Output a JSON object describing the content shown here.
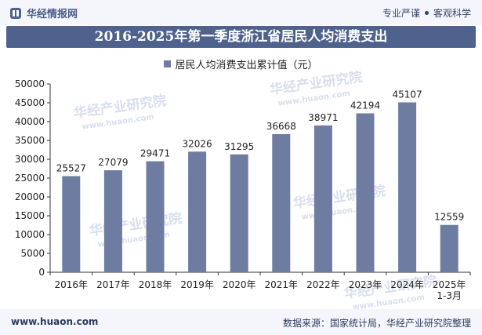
{
  "header": {
    "brand": "华经情报网",
    "tag1": "专业严谨",
    "tag2": "客观科学"
  },
  "watermark": {
    "text": "华经产业研究院",
    "url": "www.huaon.com"
  },
  "footer": {
    "site": "www.huaon.com",
    "source": "数据来源：国家统计局，华经产业研究院整理"
  },
  "colors": {
    "bar": "#6e7ca2",
    "title_bg": "#4f628e"
  },
  "chart_data": {
    "type": "bar",
    "title": "2016-2025年第一季度浙江省居民人均消费支出",
    "legend": "居民人均消费支出累计值（元）",
    "categories": [
      [
        "2016年"
      ],
      [
        "2017年"
      ],
      [
        "2018年"
      ],
      [
        "2019年"
      ],
      [
        "2020年"
      ],
      [
        "2021年"
      ],
      [
        "2022年"
      ],
      [
        "2023年"
      ],
      [
        "2024年"
      ],
      [
        "2025年",
        "1-3月"
      ]
    ],
    "values": [
      25527,
      27079,
      29471,
      32026,
      31295,
      36668,
      38971,
      42194,
      45107,
      12559
    ],
    "ylim": [
      0,
      50000
    ],
    "yticks": [
      0,
      5000,
      10000,
      15000,
      20000,
      25000,
      30000,
      35000,
      40000,
      45000,
      50000
    ],
    "grid": false
  }
}
